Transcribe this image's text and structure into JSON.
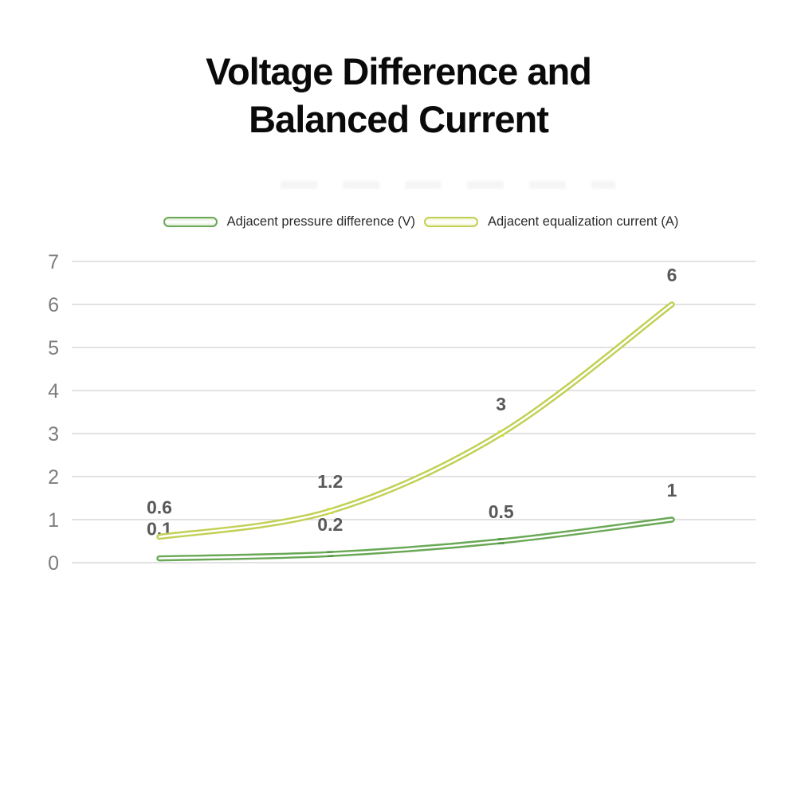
{
  "title": {
    "line1": "Voltage Difference and",
    "line2": "Balanced Current"
  },
  "legend": [
    {
      "label": "Adjacent pressure difference (V)",
      "color": "#69a855",
      "tint": "#ddebd2"
    },
    {
      "label": "Adjacent equalization current (A)",
      "color": "#c2d055",
      "tint": "#eff3c9"
    }
  ],
  "chart_data": {
    "type": "line",
    "x": [
      1,
      2,
      3,
      4
    ],
    "series": [
      {
        "name": "Adjacent pressure difference (V)",
        "values": [
          0.1,
          0.2,
          0.5,
          1
        ],
        "labels": [
          "0.1",
          "0.2",
          "0.5",
          "1"
        ],
        "color": "#69a855",
        "marker_color": "#4e9340"
      },
      {
        "name": "Adjacent equalization current (A)",
        "values": [
          0.6,
          1.2,
          3,
          6
        ],
        "labels": [
          "0.6",
          "1.2",
          "3",
          "6"
        ],
        "color": "#c2d055",
        "marker_color": "#c9dc45"
      }
    ],
    "yticks": [
      0,
      1,
      2,
      3,
      4,
      5,
      6,
      7
    ],
    "ylim": [
      0,
      7
    ],
    "grid": true,
    "legend_position": "top",
    "line_style": "tube-outline",
    "xlabel": "",
    "ylabel": ""
  },
  "colors": {
    "background": "#ffffff",
    "gridline": "#d8d8d8",
    "tick_label": "#7d7d7d",
    "data_label": "#595959",
    "title_text": "#0a0a0a",
    "legend_text": "#2b2b2b",
    "tube_core": "#ffffff"
  }
}
